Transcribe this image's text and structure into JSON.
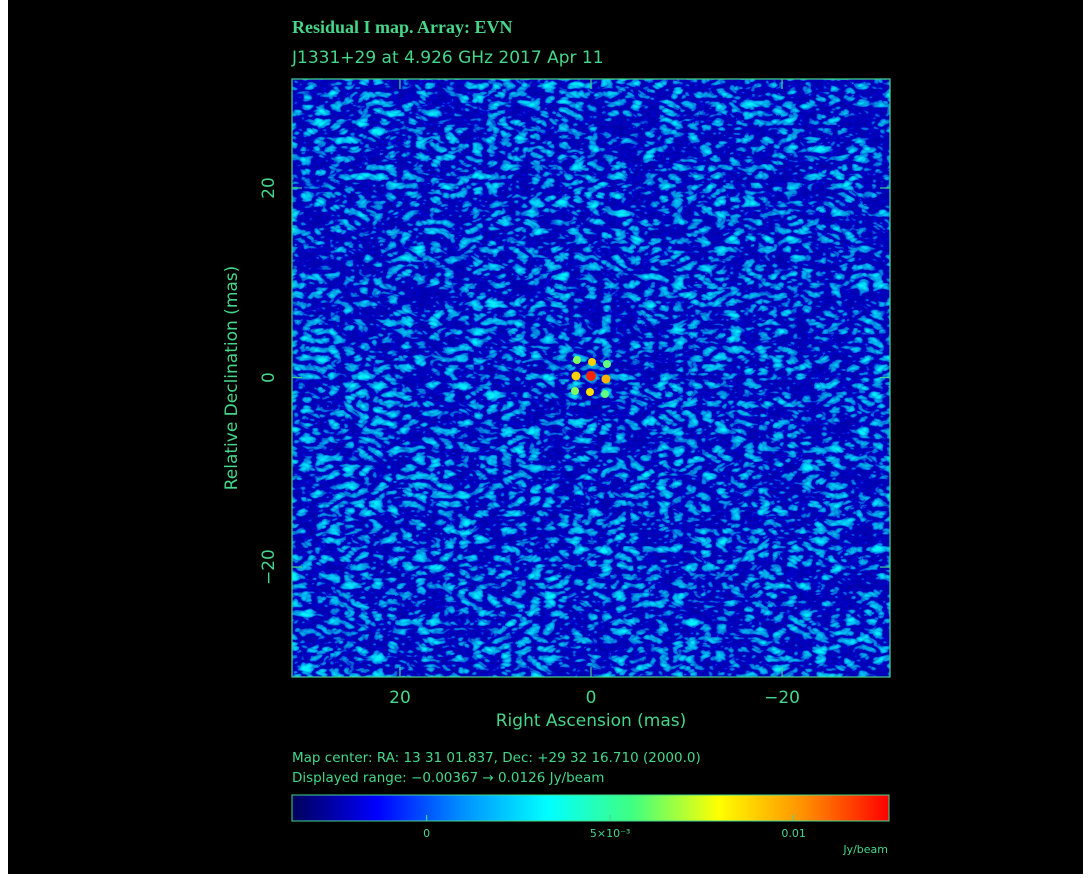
{
  "chart_data": {
    "type": "image",
    "title": "Residual I map.  Array:  EVN",
    "subtitle": "J1331+29 at 4.926 GHz 2017 Apr 11",
    "xlabel": "Right Ascension  (mas)",
    "ylabel": "Relative Declination  (mas)",
    "xlim": [
      31.3,
      -31.3
    ],
    "ylim": [
      -31.6,
      31.5
    ],
    "xticks": [
      20,
      0,
      {
        "value": -20,
        "label": "−20"
      }
    ],
    "yticks": [
      {
        "value": -20,
        "label": "−20"
      },
      0,
      20
    ],
    "notes": [
      "Map center:  RA: 13 31 01.837,  Dec: +29 32 16.710 (2000.0)",
      "Displayed range: −0.00367 → 0.0126 Jy/beam"
    ],
    "colorbar": {
      "lim": [
        -0.00367,
        0.0126
      ],
      "ticks": [
        0,
        {
          "value": 0.005,
          "label": "5×10⁻³"
        },
        0.01
      ],
      "unit": "Jy/beam",
      "colors": [
        "#00005a",
        "#0000ff",
        "#0090ff",
        "#00ffff",
        "#40ff80",
        "#ffff00",
        "#ff9000",
        "#ff0000"
      ]
    }
  }
}
